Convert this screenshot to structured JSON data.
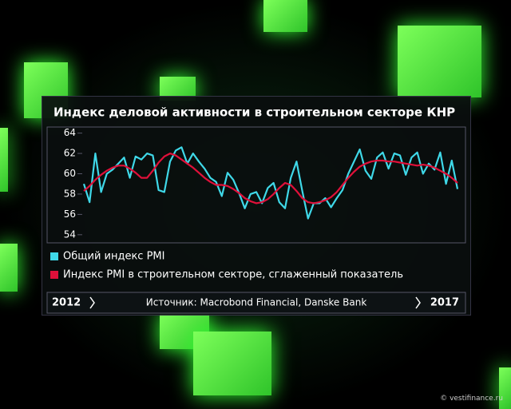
{
  "chart_data": {
    "type": "line",
    "title": "Индекс деловой активности в строительном секторе КНР",
    "series": [
      {
        "name": "Общий индекс PMI",
        "color": "#3fd8e8",
        "values": [
          59,
          57.2,
          62,
          58.2,
          60,
          60.4,
          61,
          61.6,
          59.6,
          61.7,
          61.4,
          62,
          61.8,
          58.4,
          58.2,
          61.2,
          62.3,
          62.6,
          61,
          62,
          61.2,
          60.5,
          59.6,
          59.2,
          57.8,
          60.1,
          59.4,
          58.1,
          56.6,
          58,
          58.2,
          57.1,
          58.6,
          59.1,
          57.2,
          56.6,
          59.6,
          61.2,
          58.3,
          55.6,
          57.1,
          57.1,
          57.6,
          56.7,
          57.6,
          58.4,
          60,
          61.2,
          62.4,
          60.3,
          59.5,
          61.6,
          62.1,
          60.5,
          62,
          61.8,
          59.9,
          61.6,
          62.1,
          60,
          61,
          60.4,
          62.1,
          59,
          61.3,
          58.5
        ]
      },
      {
        "name": "Индекс PMI в строительном секторе, сглаженный показатель",
        "color": "#e0103a",
        "values": [
          58.3,
          58.8,
          59.4,
          59.9,
          60.3,
          60.6,
          60.8,
          60.8,
          60.5,
          60.1,
          59.6,
          59.6,
          60.3,
          61.1,
          61.7,
          62,
          61.8,
          61.4,
          61,
          60.6,
          60.1,
          59.6,
          59.2,
          58.9,
          58.9,
          58.8,
          58.5,
          58.1,
          57.6,
          57.3,
          57.1,
          57.2,
          57.5,
          58,
          58.6,
          59.1,
          58.9,
          58.3,
          57.6,
          57.2,
          57.1,
          57.2,
          57.4,
          57.7,
          58.2,
          58.9,
          59.6,
          60.2,
          60.7,
          61,
          61.2,
          61.3,
          61.3,
          61.2,
          61.2,
          61.1,
          61,
          60.9,
          60.8,
          60.9,
          60.8,
          60.6,
          60.3,
          60,
          59.6,
          59.1
        ]
      }
    ],
    "ylim": [
      53.2,
      64.6
    ],
    "yticks": [
      54,
      56,
      58,
      60,
      62,
      64
    ]
  },
  "footer": {
    "start": "2012",
    "source": "Источник: Macrobond Financial, Danske Bank",
    "end": "2017"
  },
  "watermark": "© vestifinance.ru"
}
